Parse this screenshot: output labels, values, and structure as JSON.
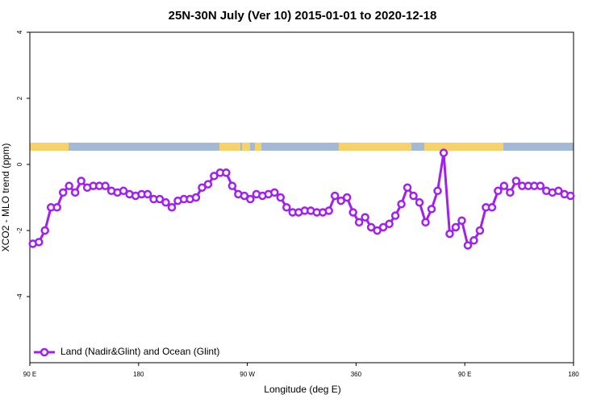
{
  "chart_data": {
    "type": "line",
    "title": "25N-30N July (Ver 10)   2015-01-01 to 2020-12-18",
    "x_label": "Longitude (deg E)",
    "y_label": "XCO2 - MLO trend (ppm)",
    "xlim": [
      90,
      540
    ],
    "xticks": [
      {
        "value": 90,
        "label": "90 E"
      },
      180,
      {
        "value": 270,
        "label": "90 W"
      },
      360,
      {
        "value": 450,
        "label": "90 E"
      },
      {
        "value": 540,
        "label": "180"
      }
    ],
    "ylim": [
      -6,
      4
    ],
    "yticks": [
      -4,
      -2,
      0,
      2,
      4
    ],
    "legend": "bottom-left",
    "x": [
      92.5,
      97.5,
      102.5,
      107.5,
      112.5,
      117.5,
      122.5,
      127.5,
      132.5,
      137.5,
      142.5,
      147.5,
      152.5,
      157.5,
      162.5,
      167.5,
      172.5,
      177.5,
      182.5,
      187.5,
      192.5,
      197.5,
      202.5,
      207.5,
      212.5,
      217.5,
      222.5,
      227.5,
      232.5,
      237.5,
      242.5,
      247.5,
      252.5,
      257.5,
      262.5,
      267.5,
      272.5,
      277.5,
      282.5,
      287.5,
      292.5,
      297.5,
      302.5,
      307.5,
      312.5,
      317.5,
      322.5,
      327.5,
      332.5,
      337.5,
      342.5,
      347.5,
      352.5,
      357.5,
      362.5,
      367.5,
      372.5,
      377.5,
      382.5,
      387.5,
      392.5,
      397.5,
      402.5,
      407.5,
      412.5,
      417.5,
      422.5,
      427.5,
      432.5,
      437.5,
      442.5,
      447.5,
      452.5,
      457.5,
      462.5,
      467.5,
      472.5,
      477.5,
      482.5,
      487.5,
      492.5,
      497.5,
      502.5,
      507.5,
      512.5,
      517.5,
      522.5,
      527.5,
      532.5,
      537.5
    ],
    "series": [
      {
        "name": "Land (Nadir&Glint) and Ocean (Glint)",
        "color": "#a020f0",
        "values": [
          -2.4,
          -2.35,
          -2.0,
          -1.3,
          -1.3,
          -0.85,
          -0.65,
          -0.85,
          -0.5,
          -0.7,
          -0.65,
          -0.65,
          -0.65,
          -0.8,
          -0.85,
          -0.8,
          -0.9,
          -0.95,
          -0.9,
          -0.9,
          -1.05,
          -1.05,
          -1.15,
          -1.3,
          -1.1,
          -1.05,
          -1.05,
          -1.0,
          -0.7,
          -0.6,
          -0.35,
          -0.25,
          -0.25,
          -0.65,
          -0.9,
          -0.95,
          -1.05,
          -0.9,
          -0.95,
          -0.9,
          -0.85,
          -1.0,
          -1.3,
          -1.45,
          -1.45,
          -1.4,
          -1.4,
          -1.45,
          -1.45,
          -1.4,
          -0.95,
          -1.1,
          -1.0,
          -1.45,
          -1.75,
          -1.6,
          -1.9,
          -2.0,
          -1.9,
          -1.8,
          -1.55,
          -1.2,
          -0.7,
          -0.95,
          -1.15,
          -1.75,
          -1.35,
          -0.8,
          0.35,
          -2.1,
          -1.9,
          -1.7,
          -2.45,
          -2.3,
          -2.0,
          -1.3,
          -1.3,
          -0.8,
          -0.65,
          -0.85,
          -0.5,
          -0.65,
          -0.65,
          -0.65,
          -0.65,
          -0.8,
          -0.85,
          -0.8,
          -0.9,
          -0.95
        ]
      }
    ]
  }
}
